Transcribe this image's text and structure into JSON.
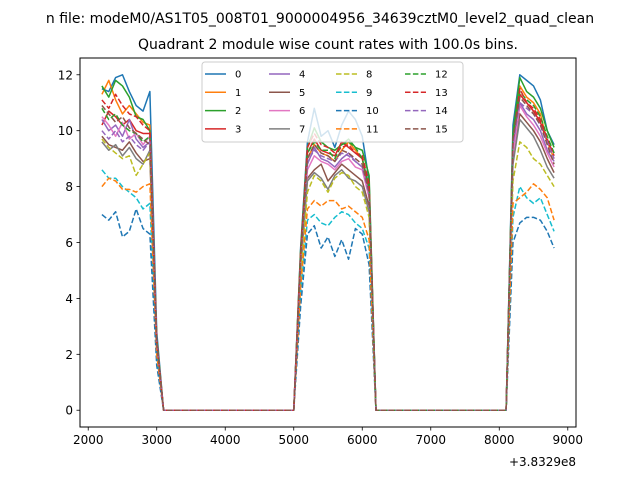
{
  "figure": {
    "suptitle": "n file: modeM0/AS1T05_008T01_9000004956_34639cztM0_level2_quad_clean",
    "title": "Quadrant 2 module wise count rates with 100.0s bins.",
    "x_offset_label": "+3.8329e8"
  },
  "chart_data": {
    "type": "line",
    "title": "Quadrant 2 module wise count rates with 100.0s bins.",
    "xlabel": "",
    "ylabel": "",
    "xlim": [
      1880,
      9120
    ],
    "ylim": [
      -0.6,
      12.6
    ],
    "x_offset": 383290000,
    "xticks": [
      2000,
      3000,
      4000,
      5000,
      6000,
      7000,
      8000,
      9000
    ],
    "xtick_labels": [
      "2000",
      "3000",
      "4000",
      "5000",
      "6000",
      "7000",
      "8000",
      "9000"
    ],
    "yticks": [
      0,
      2,
      4,
      6,
      8,
      10,
      12
    ],
    "ytick_labels": [
      "0",
      "2",
      "4",
      "6",
      "8",
      "10",
      "12"
    ],
    "grid": false,
    "legend": {
      "location": "upper center",
      "columns": 4
    },
    "x_segments": [
      [
        2200,
        2300,
        2400,
        2500,
        2600,
        2700,
        2800,
        2900,
        3000,
        3100
      ],
      [
        5000,
        5100,
        5200,
        5300,
        5400,
        5500,
        5600,
        5700,
        5800,
        5900,
        6000,
        6100,
        6200
      ],
      [
        8100,
        8200,
        8300,
        8400,
        8500,
        8600,
        8700,
        8800
      ]
    ],
    "x_gaps": [
      [
        3100,
        5000
      ],
      [
        6200,
        8100
      ]
    ],
    "series": [
      {
        "name": "0",
        "color": "#1f77b4",
        "style": "solid",
        "segments": [
          [
            11.5,
            11.4,
            11.9,
            12.0,
            11.4,
            10.9,
            10.7,
            11.4,
            2.8,
            0
          ],
          [
            0,
            5.8,
            9.6,
            10.8,
            9.8,
            10.0,
            9.4,
            10.2,
            10.7,
            10.4,
            9.8,
            8.2,
            0
          ],
          [
            0,
            10.2,
            12.0,
            11.8,
            11.6,
            11.1,
            10.0,
            9.5
          ]
        ]
      },
      {
        "name": "1",
        "color": "#ff7f0e",
        "style": "solid",
        "segments": [
          [
            11.3,
            11.8,
            11.1,
            10.6,
            10.9,
            10.6,
            10.3,
            10.2,
            2.5,
            0
          ],
          [
            0,
            5.6,
            9.0,
            9.5,
            9.2,
            9.1,
            8.9,
            9.3,
            9.6,
            9.3,
            9.0,
            7.8,
            0
          ],
          [
            0,
            9.7,
            11.6,
            11.2,
            11.0,
            10.6,
            9.6,
            9.0
          ]
        ]
      },
      {
        "name": "2",
        "color": "#2ca02c",
        "style": "solid",
        "segments": [
          [
            11.6,
            11.2,
            11.8,
            11.6,
            11.2,
            10.5,
            10.4,
            10.0,
            2.6,
            0
          ],
          [
            0,
            5.7,
            9.4,
            10.1,
            9.6,
            9.4,
            9.3,
            9.5,
            9.7,
            9.4,
            9.3,
            8.4,
            0
          ],
          [
            0,
            9.9,
            11.9,
            11.4,
            11.2,
            10.8,
            10.0,
            9.4
          ]
        ]
      },
      {
        "name": "3",
        "color": "#d62728",
        "style": "solid",
        "segments": [
          [
            10.2,
            10.7,
            10.5,
            10.2,
            10.4,
            10.0,
            9.9,
            9.9,
            2.5,
            0
          ],
          [
            0,
            5.4,
            9.2,
            9.7,
            9.3,
            9.2,
            9.1,
            9.6,
            9.4,
            9.2,
            9.0,
            7.9,
            0
          ],
          [
            0,
            9.4,
            11.3,
            11.0,
            10.7,
            10.3,
            9.6,
            9.2
          ]
        ]
      },
      {
        "name": "4",
        "color": "#9467bd",
        "style": "solid",
        "segments": [
          [
            10.4,
            10.0,
            10.2,
            9.8,
            10.4,
            9.7,
            9.4,
            9.6,
            2.4,
            0
          ],
          [
            0,
            5.3,
            8.8,
            9.4,
            9.0,
            8.9,
            8.7,
            9.0,
            9.2,
            8.9,
            8.7,
            7.7,
            0
          ],
          [
            0,
            9.3,
            11.0,
            10.6,
            10.4,
            10.0,
            9.3,
            8.9
          ]
        ]
      },
      {
        "name": "5",
        "color": "#8c564b",
        "style": "solid",
        "segments": [
          [
            9.8,
            9.5,
            9.4,
            9.3,
            9.6,
            9.2,
            8.9,
            9.0,
            2.3,
            0
          ],
          [
            0,
            5.0,
            8.3,
            8.6,
            8.8,
            8.2,
            8.5,
            8.8,
            8.6,
            8.4,
            8.2,
            7.3,
            0
          ],
          [
            0,
            9.0,
            10.6,
            10.3,
            10.0,
            9.6,
            9.0,
            8.5
          ]
        ]
      },
      {
        "name": "6",
        "color": "#e377c2",
        "style": "solid",
        "segments": [
          [
            10.5,
            10.2,
            9.8,
            10.3,
            9.7,
            9.9,
            9.5,
            9.8,
            2.4,
            0
          ],
          [
            0,
            5.2,
            8.6,
            9.1,
            8.9,
            8.8,
            8.6,
            8.9,
            9.0,
            8.7,
            8.6,
            7.6,
            0
          ],
          [
            0,
            9.1,
            10.9,
            10.5,
            10.2,
            9.8,
            9.2,
            8.7
          ]
        ]
      },
      {
        "name": "7",
        "color": "#7f7f7f",
        "style": "solid",
        "segments": [
          [
            9.6,
            9.3,
            9.5,
            9.1,
            9.4,
            9.0,
            8.8,
            9.3,
            2.3,
            0
          ],
          [
            0,
            5.0,
            8.2,
            8.5,
            8.3,
            7.9,
            8.4,
            8.6,
            8.3,
            8.2,
            8.0,
            7.1,
            0
          ],
          [
            0,
            8.8,
            10.4,
            10.1,
            9.8,
            9.3,
            8.7,
            8.3
          ]
        ]
      },
      {
        "name": "8",
        "color": "#bcbd22",
        "style": "dashed",
        "segments": [
          [
            9.7,
            9.4,
            9.2,
            9.0,
            9.1,
            8.4,
            8.8,
            9.2,
            2.3,
            0
          ],
          [
            0,
            4.8,
            7.8,
            8.4,
            8.2,
            7.8,
            8.3,
            8.5,
            8.4,
            8.0,
            7.8,
            6.9,
            0
          ],
          [
            0,
            8.2,
            9.6,
            9.4,
            9.0,
            8.8,
            8.4,
            8.0
          ]
        ]
      },
      {
        "name": "9",
        "color": "#17becf",
        "style": "dashed",
        "segments": [
          [
            8.6,
            8.3,
            8.3,
            8.0,
            7.8,
            7.6,
            7.2,
            7.4,
            1.9,
            0
          ],
          [
            0,
            4.2,
            6.8,
            7.0,
            6.7,
            6.6,
            6.9,
            7.1,
            7.0,
            6.7,
            6.5,
            5.8,
            0
          ],
          [
            0,
            6.9,
            8.0,
            7.6,
            7.4,
            7.6,
            7.0,
            6.4
          ]
        ]
      },
      {
        "name": "10",
        "color": "#1f77b4",
        "style": "dashed",
        "segments": [
          [
            7.0,
            6.8,
            7.1,
            6.2,
            6.4,
            7.2,
            6.5,
            6.3,
            1.6,
            0
          ],
          [
            0,
            3.7,
            6.3,
            6.6,
            5.8,
            6.2,
            5.5,
            6.1,
            5.4,
            6.5,
            6.3,
            5.2,
            0
          ],
          [
            0,
            6.0,
            6.7,
            6.9,
            6.9,
            6.8,
            6.4,
            5.8
          ]
        ]
      },
      {
        "name": "11",
        "color": "#ff7f0e",
        "style": "dashed",
        "segments": [
          [
            8.0,
            8.3,
            8.2,
            7.9,
            7.9,
            7.8,
            8.0,
            8.1,
            2.0,
            0
          ],
          [
            0,
            4.4,
            7.2,
            7.5,
            7.3,
            7.5,
            7.5,
            7.2,
            7.3,
            7.1,
            6.9,
            6.1,
            0
          ],
          [
            0,
            7.4,
            7.6,
            7.8,
            8.1,
            7.9,
            7.6,
            6.8
          ]
        ]
      },
      {
        "name": "12",
        "color": "#2ca02c",
        "style": "dashed",
        "segments": [
          [
            10.8,
            10.4,
            10.6,
            10.2,
            10.0,
            9.9,
            9.6,
            9.8,
            2.5,
            0
          ],
          [
            0,
            5.5,
            9.2,
            9.6,
            9.3,
            9.3,
            9.0,
            9.5,
            9.6,
            9.4,
            9.0,
            8.0,
            0
          ],
          [
            0,
            9.8,
            11.4,
            11.1,
            10.9,
            10.5,
            9.8,
            9.2
          ]
        ]
      },
      {
        "name": "13",
        "color": "#d62728",
        "style": "dashed",
        "segments": [
          [
            11.1,
            10.8,
            11.3,
            10.9,
            10.6,
            10.5,
            10.2,
            10.0,
            2.5,
            0
          ],
          [
            0,
            5.6,
            9.4,
            9.9,
            9.5,
            9.4,
            9.2,
            9.4,
            9.5,
            9.2,
            9.1,
            8.1,
            0
          ],
          [
            0,
            9.6,
            11.5,
            11.0,
            10.8,
            10.4,
            9.7,
            9.1
          ]
        ]
      },
      {
        "name": "14",
        "color": "#9467bd",
        "style": "dashed",
        "segments": [
          [
            10.0,
            9.7,
            10.0,
            9.6,
            9.8,
            9.5,
            9.3,
            9.6,
            2.4,
            0
          ],
          [
            0,
            5.3,
            8.9,
            9.3,
            9.1,
            9.0,
            8.9,
            9.2,
            9.1,
            8.9,
            8.7,
            7.7,
            0
          ],
          [
            0,
            9.5,
            11.0,
            10.8,
            10.6,
            10.2,
            9.6,
            9.0
          ]
        ]
      },
      {
        "name": "15",
        "color": "#8c564b",
        "style": "dashed",
        "segments": [
          [
            10.9,
            10.6,
            10.3,
            10.5,
            10.1,
            9.9,
            9.7,
            9.5,
            2.4,
            0
          ],
          [
            0,
            5.4,
            9.0,
            9.5,
            9.2,
            9.1,
            8.9,
            9.3,
            9.2,
            9.0,
            8.8,
            7.8,
            0
          ],
          [
            0,
            9.7,
            11.2,
            10.9,
            10.6,
            10.2,
            9.5,
            8.8
          ]
        ]
      }
    ]
  }
}
